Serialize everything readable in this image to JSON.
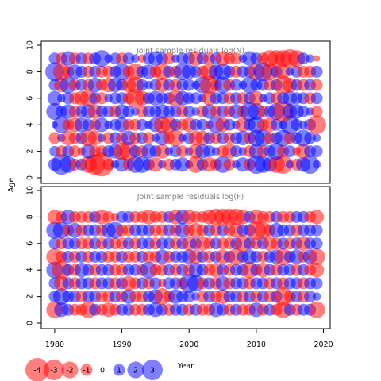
{
  "chart_data": [
    {
      "type": "scatter",
      "title": "Joint sample residuals log(N)",
      "ylabel": "Age",
      "xlabel": "Year",
      "xlim": [
        1978,
        2021
      ],
      "ylim": [
        0,
        10
      ],
      "xticks": [
        1980,
        1990,
        2000,
        2010,
        2020
      ],
      "yticks": [
        0,
        2,
        4,
        6,
        8,
        10
      ],
      "x": [
        1980,
        1981,
        1982,
        1983,
        1984,
        1985,
        1986,
        1987,
        1988,
        1989,
        1990,
        1991,
        1992,
        1993,
        1994,
        1995,
        1996,
        1997,
        1998,
        1999,
        2000,
        2001,
        2002,
        2003,
        2004,
        2005,
        2006,
        2007,
        2008,
        2009,
        2010,
        2011,
        2012,
        2013,
        2014,
        2015,
        2016,
        2017,
        2018,
        2019
      ],
      "ages": [
        1,
        2,
        3,
        4,
        5,
        6,
        7,
        8,
        9
      ],
      "note": "bubble area proportional to |residual|; red = negative, blue = positive"
    },
    {
      "type": "scatter",
      "title": "Joint sample residuals log(F)",
      "ylabel": "Age",
      "xlabel": "Year",
      "xlim": [
        1978,
        2021
      ],
      "ylim": [
        0,
        10
      ],
      "xticks": [
        1980,
        1990,
        2000,
        2010,
        2020
      ],
      "yticks": [
        0,
        2,
        4,
        6,
        8,
        10
      ],
      "x": [
        1980,
        1981,
        1982,
        1983,
        1984,
        1985,
        1986,
        1987,
        1988,
        1989,
        1990,
        1991,
        1992,
        1993,
        1994,
        1995,
        1996,
        1997,
        1998,
        1999,
        2000,
        2001,
        2002,
        2003,
        2004,
        2005,
        2006,
        2007,
        2008,
        2009,
        2010,
        2011,
        2012,
        2013,
        2014,
        2015,
        2016,
        2017,
        2018,
        2019
      ],
      "ages": [
        1,
        2,
        3,
        4,
        5,
        6,
        7,
        8
      ],
      "note": "bubble area proportional to |residual|; red = negative, blue = positive"
    }
  ],
  "panels": [
    {
      "title": "Joint sample residuals log(N)",
      "residuals": [
        [
          1.2,
          3.0,
          2.0,
          -1.0,
          1.0,
          -2.0,
          -3.0,
          -4.0,
          -1.0,
          0.5,
          1.5,
          -1.0,
          2.0,
          2.0,
          1.0,
          -1.5,
          0.5,
          -1.0,
          1.0,
          1.5,
          0.5,
          -2.0,
          1.0,
          -1.5,
          -1.0,
          2.0,
          -1.0,
          0.5,
          1.5,
          -1.0,
          2.5,
          2.0,
          1.5,
          -2.0,
          -2.5,
          0.5,
          -1.0,
          1.5,
          2.5,
          0.5
        ],
        [
          0.8,
          -1.0,
          1.0,
          -1.0,
          -0.5,
          1.5,
          -1.0,
          -1.0,
          1.0,
          1.5,
          -2.0,
          -2.5,
          1.0,
          -1.0,
          1.5,
          1.0,
          -1.5,
          0.5,
          1.0,
          -1.0,
          0.5,
          -1.5,
          1.5,
          1.0,
          0.5,
          -1.0,
          -1.5,
          1.0,
          0.5,
          -1.0,
          1.5,
          -1.0,
          1.0,
          2.0,
          -1.0,
          1.0,
          -0.5,
          -1.5,
          1.0,
          1.0
        ],
        [
          -1.0,
          0.5,
          -1.5,
          -1.0,
          1.0,
          -2.0,
          -1.5,
          0.5,
          -1.0,
          1.0,
          -1.0,
          1.5,
          -1.0,
          1.0,
          -1.0,
          0.5,
          1.5,
          -1.0,
          -2.0,
          0.5,
          1.0,
          -1.5,
          -1.5,
          1.0,
          -1.0,
          1.0,
          -1.0,
          1.0,
          1.5,
          -1.0,
          2.0,
          2.0,
          -1.0,
          1.0,
          2.0,
          -1.0,
          1.0,
          2.0,
          1.0,
          0.5
        ],
        [
          0.3,
          2.0,
          -1.0,
          -1.5,
          1.5,
          1.0,
          -1.0,
          1.5,
          0.5,
          1.0,
          1.5,
          -1.0,
          -1.0,
          1.0,
          0.5,
          1.5,
          -2.0,
          -2.0,
          1.0,
          -1.0,
          -1.5,
          1.0,
          1.0,
          -0.5,
          2.0,
          -1.5,
          1.0,
          0.5,
          -1.5,
          1.0,
          2.0,
          -1.0,
          -1.5,
          1.0,
          0.5,
          2.5,
          1.0,
          0.5,
          1.0,
          -2.5
        ],
        [
          2.0,
          1.0,
          1.5,
          -1.0,
          1.0,
          1.5,
          -1.5,
          1.0,
          1.0,
          -1.0,
          1.5,
          1.0,
          0.5,
          -1.0,
          1.0,
          1.0,
          1.5,
          1.0,
          1.0,
          -1.0,
          1.0,
          0.5,
          -1.0,
          1.5,
          -1.0,
          1.0,
          -1.0,
          1.5,
          -1.0,
          2.5,
          2.0,
          -1.0,
          1.0,
          2.0,
          -3.0,
          1.5,
          1.5,
          1.0,
          0.5,
          -1.0
        ],
        [
          1.5,
          0.5,
          1.0,
          -1.0,
          -1.5,
          -2.0,
          1.0,
          -1.0,
          0.5,
          1.0,
          1.0,
          -1.0,
          -2.5,
          -1.5,
          1.0,
          1.5,
          1.0,
          1.0,
          -2.0,
          1.5,
          1.0,
          1.0,
          0.5,
          -1.5,
          1.0,
          1.0,
          -1.0,
          1.0,
          -1.0,
          1.0,
          -1.5,
          0.5,
          1.0,
          -1.0,
          1.0,
          1.5,
          1.0,
          1.0,
          -1.0,
          1.0
        ],
        [
          1.0,
          -1.5,
          2.0,
          -1.0,
          1.0,
          -1.0,
          1.5,
          -1.0,
          -1.5,
          1.5,
          1.0,
          -1.5,
          -2.0,
          1.0,
          0.5,
          1.0,
          -1.5,
          1.0,
          -1.0,
          1.0,
          1.0,
          0.5,
          2.0,
          -2.5,
          -1.0,
          2.0,
          -1.0,
          1.0,
          0.5,
          2.0,
          1.0,
          1.0,
          -1.0,
          1.0,
          -2.5,
          -1.5,
          1.0,
          -1.0,
          1.0,
          -1.0
        ],
        [
          2.5,
          -2.0,
          -1.0,
          1.5,
          1.0,
          -1.0,
          1.0,
          -1.0,
          -1.0,
          1.0,
          2.0,
          -1.0,
          -2.0,
          1.0,
          1.5,
          -1.0,
          -2.0,
          1.0,
          -1.0,
          2.0,
          1.5,
          1.0,
          -1.0,
          -2.0,
          1.5,
          2.0,
          1.0,
          -1.0,
          1.0,
          1.0,
          -2.0,
          2.5,
          -2.0,
          1.0,
          -1.5,
          0.5,
          1.0,
          -1.0,
          -1.0,
          1.0
        ],
        [
          1.0,
          -1.0,
          1.5,
          -1.0,
          1.0,
          -1.0,
          1.0,
          2.0,
          0.5,
          1.0,
          -1.0,
          1.0,
          0.5,
          -0.5,
          1.0,
          1.5,
          1.0,
          -1.0,
          0.5,
          1.0,
          1.0,
          -1.5,
          1.0,
          -1.0,
          1.0,
          -1.5,
          -1.0,
          -1.0,
          0.5,
          1.5,
          1.0,
          -1.0,
          -2.0,
          -2.0,
          -2.0,
          -2.5,
          -2.0,
          1.0,
          0.5,
          -0.3
        ]
      ]
    },
    {
      "title": "Joint sample residuals log(F)",
      "residuals": [
        [
          -2.0,
          1.5,
          1.0,
          -1.0,
          -1.0,
          -2.0,
          1.0,
          -1.0,
          -1.5,
          -1.0,
          1.0,
          1.0,
          -1.0,
          -1.0,
          1.0,
          1.5,
          1.0,
          -1.0,
          1.0,
          1.0,
          -1.0,
          1.0,
          -1.0,
          -1.0,
          1.5,
          1.0,
          -1.0,
          1.0,
          -1.0,
          -1.0,
          1.5,
          -1.0,
          1.0,
          -1.0,
          -2.0,
          1.0,
          -1.0,
          1.0,
          1.0,
          -2.0
        ],
        [
          1.0,
          2.0,
          1.0,
          1.0,
          -1.0,
          1.0,
          1.0,
          -1.0,
          -1.0,
          1.0,
          -1.0,
          1.5,
          -1.0,
          -1.0,
          1.0,
          1.5,
          -2.0,
          -1.0,
          1.5,
          1.0,
          1.0,
          0.5,
          -1.0,
          1.0,
          -1.0,
          -1.5,
          1.0,
          1.0,
          -1.0,
          1.0,
          -1.0,
          1.0,
          -1.0,
          1.0,
          -2.5,
          -1.0,
          1.0,
          -1.0,
          1.0,
          0.5
        ],
        [
          1.0,
          -1.5,
          1.0,
          -1.0,
          1.0,
          1.0,
          -1.0,
          1.0,
          1.0,
          -1.0,
          1.0,
          -1.5,
          -1.0,
          1.0,
          -1.0,
          1.0,
          -0.5,
          1.0,
          1.0,
          -1.0,
          2.5,
          2.0,
          -1.0,
          1.0,
          -1.0,
          1.5,
          -1.0,
          1.0,
          1.0,
          -1.0,
          1.0,
          1.0,
          -1.0,
          1.0,
          -1.0,
          1.0,
          1.0,
          -1.0,
          1.0,
          1.0
        ],
        [
          2.0,
          -2.5,
          1.0,
          -1.0,
          1.5,
          1.0,
          -1.0,
          1.0,
          1.0,
          -1.0,
          -1.0,
          1.0,
          1.0,
          -1.0,
          2.0,
          -1.0,
          -1.0,
          1.0,
          -1.0,
          1.0,
          -1.0,
          1.5,
          1.0,
          -1.0,
          -1.5,
          1.0,
          -1.0,
          1.0,
          1.0,
          -2.0,
          1.0,
          -1.5,
          1.0,
          -1.0,
          1.0,
          1.0,
          -1.0,
          1.0,
          -1.0,
          -1.5
        ],
        [
          -2.0,
          -1.0,
          1.0,
          -1.0,
          1.0,
          -1.0,
          1.0,
          1.0,
          -1.0,
          -1.0,
          1.0,
          -1.0,
          -1.0,
          1.0,
          -1.0,
          -1.0,
          1.5,
          -1.0,
          1.0,
          1.0,
          1.5,
          -1.5,
          1.0,
          -1.0,
          1.0,
          -1.5,
          1.0,
          -2.0,
          1.0,
          1.5,
          1.0,
          -1.0,
          1.0,
          1.5,
          -2.0,
          1.0,
          1.5,
          -1.0,
          1.5,
          -2.0
        ],
        [
          1.0,
          -1.0,
          1.0,
          1.0,
          -1.0,
          -1.0,
          1.0,
          -1.0,
          1.0,
          -1.0,
          -1.0,
          1.0,
          -1.0,
          1.0,
          1.0,
          -1.0,
          1.0,
          1.0,
          -1.0,
          1.0,
          -1.5,
          1.0,
          -1.5,
          -1.0,
          1.0,
          -1.0,
          -1.0,
          1.0,
          -2.0,
          1.0,
          -1.0,
          1.0,
          -1.5,
          -1.0,
          1.0,
          -1.0,
          1.0,
          -1.5,
          1.0,
          1.0
        ],
        [
          2.0,
          2.0,
          -1.0,
          1.5,
          -1.0,
          1.0,
          1.0,
          -1.0,
          1.5,
          2.0,
          -1.0,
          -1.0,
          1.0,
          1.0,
          1.0,
          -1.0,
          -1.0,
          1.0,
          -1.0,
          1.5,
          -1.0,
          -1.5,
          -1.0,
          1.0,
          -1.0,
          1.0,
          -1.0,
          -1.5,
          1.0,
          1.0,
          -2.5,
          -2.0,
          -1.0,
          1.5,
          1.0,
          1.0,
          -1.0,
          1.0,
          1.0,
          1.0
        ],
        [
          -1.5,
          -1.0,
          1.5,
          -1.0,
          -1.0,
          -1.0,
          1.0,
          -1.5,
          -1.0,
          -0.5,
          1.0,
          1.0,
          -1.0,
          -1.0,
          -1.5,
          -1.0,
          -1.0,
          1.0,
          -1.5,
          1.5,
          -1.5,
          -1.0,
          -1.0,
          -1.5,
          -2.0,
          -2.0,
          -2.0,
          -2.0,
          -1.5,
          1.0,
          -1.5,
          -1.0,
          -1.0,
          1.0,
          -1.0,
          -1.0,
          1.0,
          1.0,
          -1.0,
          -1.5
        ]
      ]
    }
  ],
  "legend": {
    "items": [
      {
        "label": "-4",
        "value": -4
      },
      {
        "label": "-3",
        "value": -3
      },
      {
        "label": "-2",
        "value": -2
      },
      {
        "label": "-1",
        "value": -1
      },
      {
        "label": "0",
        "value": 0
      },
      {
        "label": "1",
        "value": 1
      },
      {
        "label": "2",
        "value": 2
      },
      {
        "label": "3",
        "value": 3
      }
    ]
  },
  "colors": {
    "negative": "#ff0000",
    "positive": "#0000ff",
    "title": "#808080",
    "axis": "#000000"
  }
}
